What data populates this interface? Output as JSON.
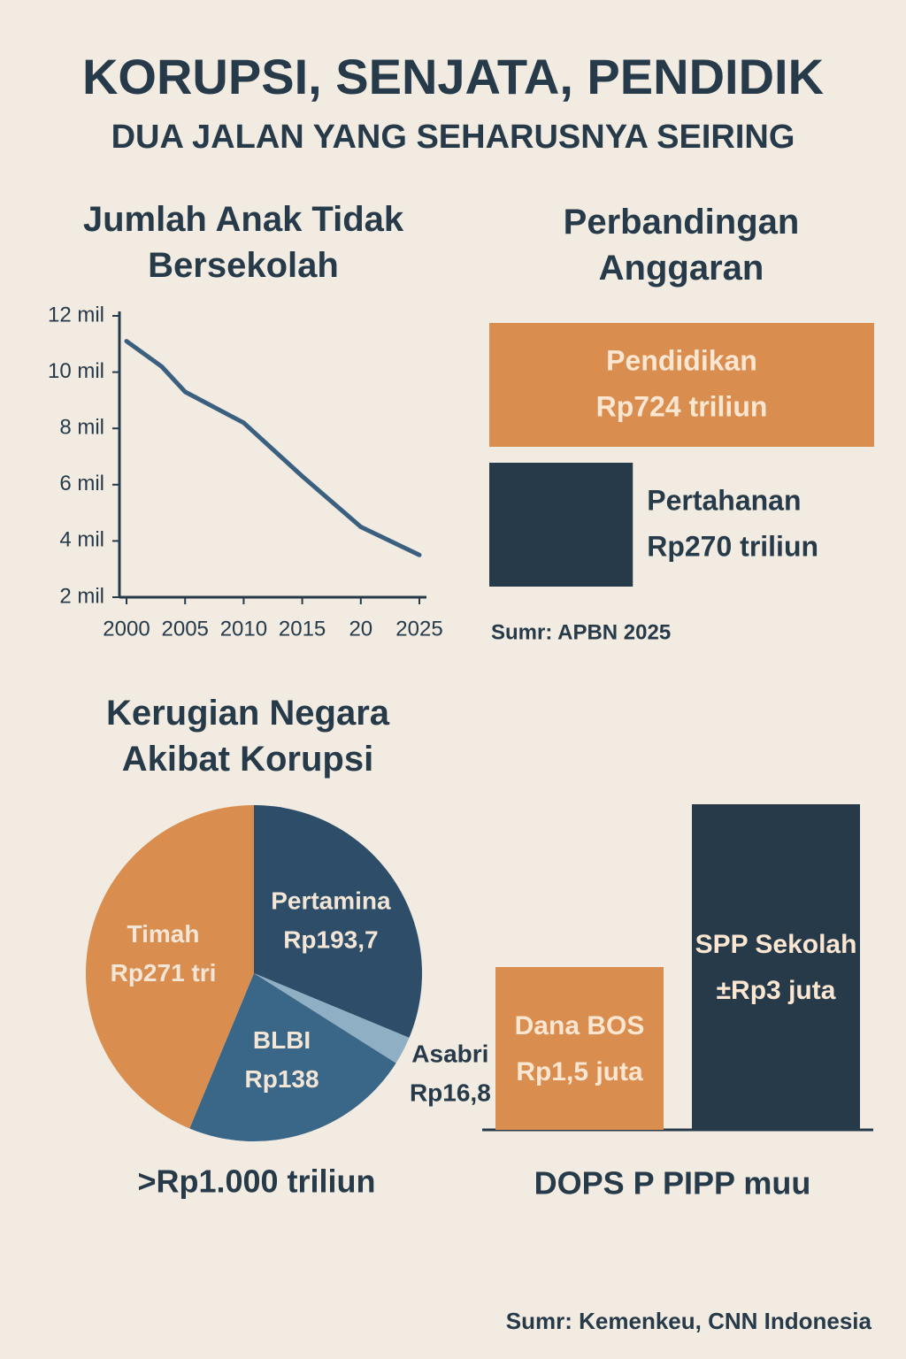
{
  "title": "KORUPSI, SENJATA, PENDIDIK",
  "subtitle": "DUA JALAN YANG SEHARUSNYA SEIRING",
  "chart_data": [
    {
      "type": "line",
      "title": "Jumlah Anak Tidak Bersekolah",
      "x": [
        2000,
        2003,
        2005,
        2010,
        2015,
        2020,
        2025
      ],
      "values": [
        11.1,
        10.2,
        9.3,
        8.2,
        6.3,
        4.5,
        3.5
      ],
      "color": "#3b5f7e",
      "xlim": [
        2000,
        2025
      ],
      "xticks": [
        2000,
        2005,
        2010,
        2015,
        {
          "value": 2020,
          "label": "20"
        },
        2025
      ],
      "ylim": [
        2,
        12
      ],
      "yticks": [
        {
          "value": 2,
          "label": "2 mil"
        },
        {
          "value": 4,
          "label": "4 mil"
        },
        {
          "value": 6,
          "label": "6 mil"
        },
        {
          "value": 8,
          "label": "8 mil"
        },
        {
          "value": 10,
          "label": "10 mil"
        },
        {
          "value": 12,
          "label": "12 mil"
        }
      ]
    },
    {
      "type": "bar",
      "horizontal": true,
      "title": "Perbandingan Anggaran",
      "categories": [
        "Pendidikan",
        "Pertahanan"
      ],
      "values": [
        724,
        270
      ],
      "value_labels": [
        "Rp724 triliun",
        "Rp270 triliun"
      ],
      "colors": [
        "#d98e4f",
        "#263a4a"
      ],
      "note": "Sumr: APBN 2025"
    },
    {
      "type": "pie",
      "title": "Kerugian Negara Akibat Korupsi",
      "categories": [
        "Pertamina",
        "Asabri",
        "BLBI",
        "Timah"
      ],
      "values": [
        193.7,
        16.8,
        138,
        271
      ],
      "value_labels": [
        "Rp193,7",
        "Rp16,8",
        "Rp138",
        "Rp271 tri"
      ],
      "colors": [
        "#2d4d68",
        "#8fafc4",
        "#3a6688",
        "#d98e4f"
      ],
      "note": ">Rp1.000 triliun"
    },
    {
      "type": "bar",
      "horizontal": false,
      "categories": [
        "Dana BOS",
        "SPP Sekolah"
      ],
      "values": [
        1.5,
        3
      ],
      "value_labels": [
        "Rp1,5 juta",
        "±Rp3 juta"
      ],
      "colors": [
        "#d98e4f",
        "#263a4a"
      ],
      "note": "DOPS P PIPP muu"
    }
  ],
  "source": "Sumr: Kemenkeu, CNN Indonesia"
}
